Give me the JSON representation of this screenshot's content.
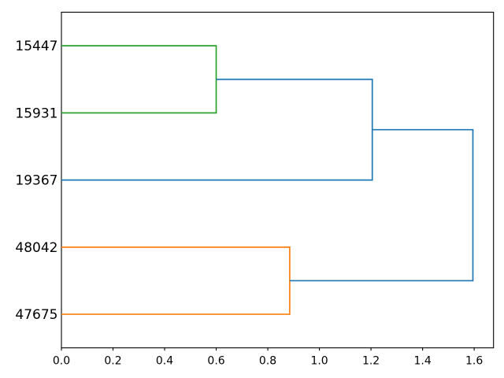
{
  "chart_data": {
    "type": "dendrogram",
    "title": "",
    "xlabel": "",
    "ylabel": "",
    "orientation": "horizontal-left-labels",
    "grid": false,
    "legend": false,
    "x_ticks": [
      0.0,
      0.2,
      0.4,
      0.6,
      0.8,
      1.0,
      1.2,
      1.4,
      1.6
    ],
    "x_tick_labels": [
      "0.0",
      "0.2",
      "0.4",
      "0.6",
      "0.8",
      "1.0",
      "1.2",
      "1.4",
      "1.6"
    ],
    "xlim": [
      0,
      1.675
    ],
    "ylim": [
      0,
      50
    ],
    "leaves": [
      {
        "label": "15447",
        "position": 45
      },
      {
        "label": "15931",
        "position": 35
      },
      {
        "label": "19367",
        "position": 25
      },
      {
        "label": "48042",
        "position": 15
      },
      {
        "label": "47675",
        "position": 5
      }
    ],
    "merges": [
      {
        "members": [
          "15447",
          "15931"
        ],
        "distance": 0.6,
        "color": "#2ca02c"
      },
      {
        "members": [
          "48042",
          "47675"
        ],
        "distance": 0.885,
        "color": "#ff7f0e"
      },
      {
        "members": [
          "[15447,15931]",
          "19367"
        ],
        "distance": 1.205,
        "color": "#1f77b4"
      },
      {
        "members": [
          "[15447,15931,19367]",
          "[48042,47675]"
        ],
        "distance": 1.595,
        "color": "#1f77b4"
      }
    ],
    "tree": {
      "distance": 1.595,
      "color": "#1f77b4",
      "children": [
        {
          "distance": 1.205,
          "color": "#1f77b4",
          "children": [
            {
              "distance": 0.6,
              "color": "#2ca02c",
              "children": [
                {
                  "leaf": "15447"
                },
                {
                  "leaf": "15931"
                }
              ]
            },
            {
              "leaf": "19367"
            }
          ]
        },
        {
          "distance": 0.885,
          "color": "#ff7f0e",
          "children": [
            {
              "leaf": "48042"
            },
            {
              "leaf": "47675"
            }
          ]
        }
      ]
    },
    "colors": {
      "above_threshold_link": "#1f77b4",
      "cluster_green": "#2ca02c",
      "cluster_orange": "#ff7f0e",
      "axis": "#000000",
      "background": "#ffffff"
    }
  }
}
